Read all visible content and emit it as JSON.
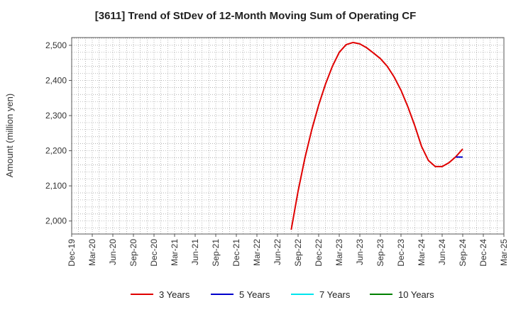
{
  "chart_data": {
    "type": "line",
    "title": "[3611]  Trend of StDev of 12-Month Moving Sum of Operating CF",
    "ylabel": "Amount (million yen)",
    "xlabel": "",
    "ylim": [
      1963,
      2522
    ],
    "yticks": [
      2000,
      2100,
      2200,
      2300,
      2400,
      2500
    ],
    "ytick_labels": [
      "2,000",
      "2,100",
      "2,200",
      "2,300",
      "2,400",
      "2,500"
    ],
    "x_tick_labels": [
      "Dec-19",
      "Mar-20",
      "Jun-20",
      "Sep-20",
      "Dec-20",
      "Mar-21",
      "Jun-21",
      "Sep-21",
      "Dec-21",
      "Mar-22",
      "Jun-22",
      "Sep-22",
      "Dec-22",
      "Mar-23",
      "Jun-23",
      "Sep-23",
      "Dec-23",
      "Mar-24",
      "Jun-24",
      "Sep-24",
      "Dec-24",
      "Mar-25"
    ],
    "grid": true,
    "legend_placement": "bottom",
    "series": [
      {
        "name": "3 Years",
        "color": "#e00000",
        "x": [
          "2022-08",
          "2022-09",
          "2022-10",
          "2022-11",
          "2022-12",
          "2023-01",
          "2023-02",
          "2023-03",
          "2023-04",
          "2023-05",
          "2023-06",
          "2023-07",
          "2023-08",
          "2023-09",
          "2023-10",
          "2023-11",
          "2023-12",
          "2023-01",
          "2024-02",
          "2024-03",
          "2024-04",
          "2024-05",
          "2024-06",
          "2024-07",
          "2024-08",
          "2024-09"
        ],
        "values": [
          1975,
          2085,
          2180,
          2260,
          2330,
          2390,
          2440,
          2480,
          2502,
          2508,
          2504,
          2493,
          2478,
          2462,
          2440,
          2410,
          2372,
          2325,
          2272,
          2212,
          2172,
          2155,
          2155,
          2166,
          2183,
          2205
        ]
      },
      {
        "name": "5 Years",
        "color": "#0000cc",
        "x": [
          "2024-08",
          "2024-09"
        ],
        "values": [
          2182,
          2182
        ]
      },
      {
        "name": "7 Years",
        "color": "#00e5ee",
        "x": [],
        "values": []
      },
      {
        "name": "10 Years",
        "color": "#008000",
        "x": [],
        "values": []
      }
    ]
  }
}
